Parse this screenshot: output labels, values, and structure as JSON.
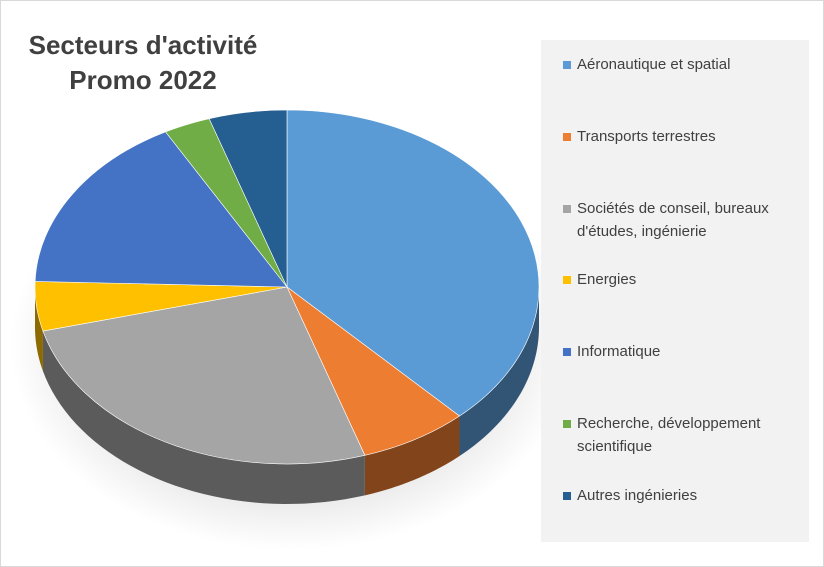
{
  "chart_data": {
    "type": "pie",
    "title": "Secteurs d'activité Promo 2022",
    "title_lines": [
      "Secteurs d'activité",
      "Promo 2022"
    ],
    "style": "3d-tilted",
    "start": "12 o'clock",
    "direction": "clockwise",
    "legend_position": "right",
    "slices": [
      {
        "label": "Aéronautique et spatial",
        "value": 38,
        "color": "#5b9bd5"
      },
      {
        "label": "Transports terrestres",
        "value": 7,
        "color": "#ed7d31"
      },
      {
        "label": "Sociétés de conseil, bureaux d'études, ingénierie",
        "value": 26,
        "color": "#a5a5a5"
      },
      {
        "label": "Energies",
        "value": 4.5,
        "color": "#ffc000"
      },
      {
        "label": "Informatique",
        "value": 16.5,
        "color": "#4472c4"
      },
      {
        "label": "Recherche, développement scientifique",
        "value": 3,
        "color": "#70ad47"
      },
      {
        "label": "Autres ingénieries",
        "value": 5,
        "color": "#255e91"
      }
    ]
  }
}
